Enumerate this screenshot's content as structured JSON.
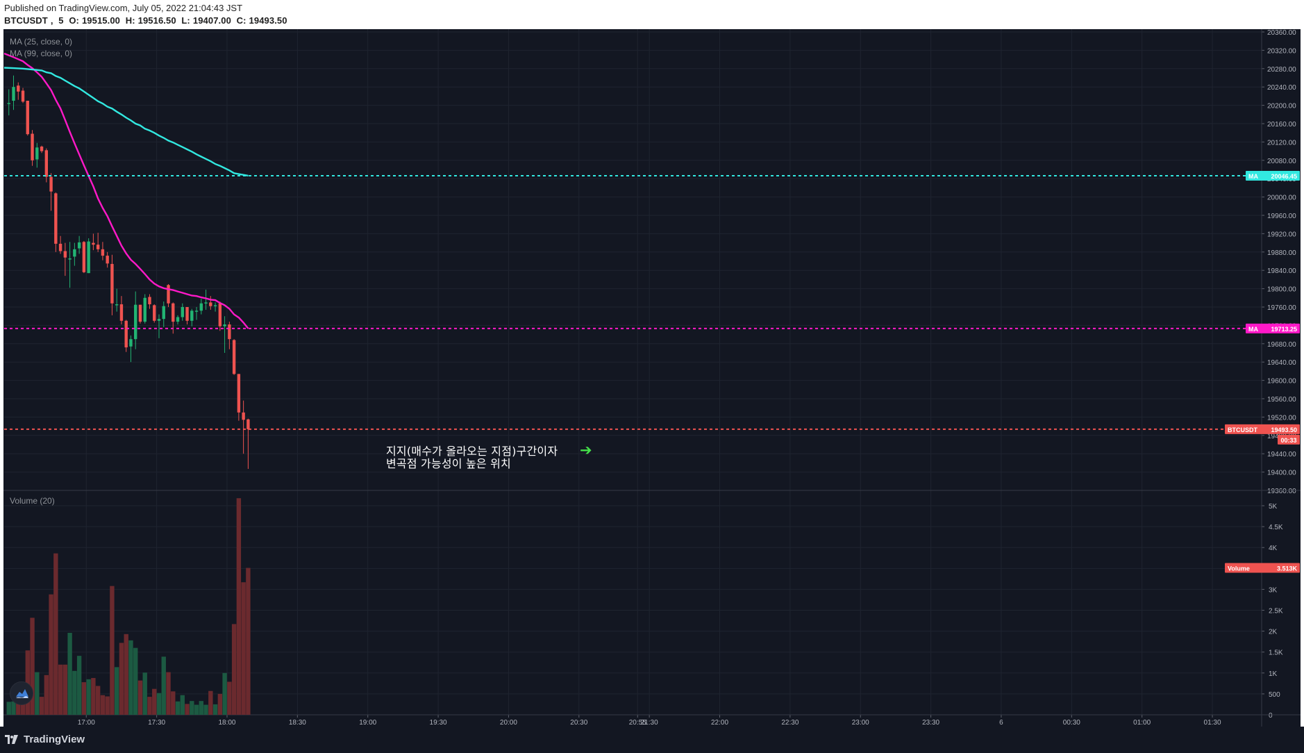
{
  "header": {
    "published_line": "Published on TradingView.com, July 05, 2022 21:04:43 JST",
    "symbol": "BTCUSDT",
    "interval": "5",
    "open_label": "O:",
    "open": "19515.00",
    "high_label": "H:",
    "high": "19516.50",
    "low_label": "L:",
    "low": "19407.00",
    "close_label": "C:",
    "close": "19493.50"
  },
  "legend": {
    "ma25": "MA (25, close, 0)",
    "ma99": "MA (99, close, 0)",
    "volume": "Volume (20)"
  },
  "annotation": {
    "line1": "지지(매수가 올라오는 지점)구간이자",
    "line2": "변곡점 가능성이 높은 위치",
    "arrow": "➔"
  },
  "footer": {
    "brand": "TradingView"
  },
  "colors": {
    "background": "#131722",
    "grid": "#1f2430",
    "axis_text": "#b2b5be",
    "up": "#26a69a",
    "up_candle": "#22b573",
    "down": "#ef5350",
    "volume_up": "#1c5a42",
    "volume_down": "#6b2a2e",
    "ma25": "#ff19c8",
    "ma99": "#32e8e0",
    "price_line": "#ef5350",
    "annotation_arrow": "#45e24a"
  },
  "chart_data": {
    "type": "candlestick",
    "symbol": "BTCUSDT",
    "interval": "5",
    "price_axis": {
      "ylim": [
        19360,
        20360
      ],
      "ticks": [
        "20360.00",
        "20320.00",
        "20280.00",
        "20240.00",
        "20200.00",
        "20160.00",
        "20120.00",
        "20080.00",
        "20040.00",
        "20000.00",
        "19960.00",
        "19920.00",
        "19880.00",
        "19840.00",
        "19800.00",
        "19760.00",
        "19720.00",
        "19680.00",
        "19640.00",
        "19600.00",
        "19560.00",
        "19520.00",
        "19480.00",
        "19440.00",
        "19400.00",
        "19360.00"
      ]
    },
    "volume_axis": {
      "ylim": [
        0,
        5200
      ],
      "ticks": [
        "5K",
        "4.5K",
        "4K",
        "3.5K",
        "3K",
        "2.5K",
        "2K",
        "1.5K",
        "1K",
        "500",
        "0"
      ]
    },
    "time_axis": {
      "ticks": [
        {
          "t": 196,
          "label": "17:00"
        },
        {
          "t": 226,
          "label": "17:30"
        },
        {
          "t": 256,
          "label": "18:00"
        },
        {
          "t": 286,
          "label": "18:30"
        },
        {
          "t": 316,
          "label": "19:00"
        },
        {
          "t": 346,
          "label": "19:30"
        },
        {
          "t": 376,
          "label": "20:00"
        },
        {
          "t": 406,
          "label": "20:30"
        },
        {
          "t": 431,
          "label": "20:55"
        },
        {
          "t": 436,
          "label": "21:30"
        },
        {
          "t": 466,
          "label": "22:00"
        },
        {
          "t": 496,
          "label": "22:30"
        },
        {
          "t": 526,
          "label": "23:00"
        },
        {
          "t": 556,
          "label": "23:30"
        },
        {
          "t": 586,
          "label": "6"
        },
        {
          "t": 616,
          "label": "00:30"
        },
        {
          "t": 646,
          "label": "01:00"
        },
        {
          "t": 676,
          "label": "01:30"
        }
      ],
      "range": [
        161,
        697
      ]
    },
    "candles": [
      {
        "t": 163,
        "o": 20205,
        "h": 20235,
        "l": 20178,
        "c": 20205,
        "v": 310
      },
      {
        "t": 165,
        "o": 20210,
        "h": 20265,
        "l": 20190,
        "c": 20240,
        "v": 320
      },
      {
        "t": 167,
        "o": 20243,
        "h": 20250,
        "l": 20212,
        "c": 20230,
        "v": 360
      },
      {
        "t": 169,
        "o": 20232,
        "h": 20238,
        "l": 20205,
        "c": 20208,
        "v": 420
      },
      {
        "t": 171,
        "o": 20210,
        "h": 20210,
        "l": 20134,
        "c": 20137,
        "v": 1540
      },
      {
        "t": 173,
        "o": 20138,
        "h": 20146,
        "l": 20068,
        "c": 20080,
        "v": 2320
      },
      {
        "t": 175,
        "o": 20082,
        "h": 20118,
        "l": 20064,
        "c": 20108,
        "v": 1020
      },
      {
        "t": 177,
        "o": 20110,
        "h": 20112,
        "l": 20096,
        "c": 20100,
        "v": 430
      },
      {
        "t": 179,
        "o": 20102,
        "h": 20106,
        "l": 20032,
        "c": 20044,
        "v": 950
      },
      {
        "t": 181,
        "o": 20044,
        "h": 20052,
        "l": 19970,
        "c": 20012,
        "v": 2880
      },
      {
        "t": 183,
        "o": 20008,
        "h": 20010,
        "l": 19880,
        "c": 19898,
        "v": 3860
      },
      {
        "t": 185,
        "o": 19898,
        "h": 19915,
        "l": 19876,
        "c": 19882,
        "v": 1200
      },
      {
        "t": 187,
        "o": 19882,
        "h": 19900,
        "l": 19828,
        "c": 19868,
        "v": 1200
      },
      {
        "t": 189,
        "o": 19866,
        "h": 19902,
        "l": 19802,
        "c": 19866,
        "v": 1960
      },
      {
        "t": 191,
        "o": 19870,
        "h": 19900,
        "l": 19850,
        "c": 19886,
        "v": 1050
      },
      {
        "t": 193,
        "o": 19888,
        "h": 19915,
        "l": 19876,
        "c": 19901,
        "v": 1410
      },
      {
        "t": 195,
        "o": 19902,
        "h": 19904,
        "l": 19834,
        "c": 19836,
        "v": 780
      },
      {
        "t": 197,
        "o": 19834,
        "h": 19910,
        "l": 19834,
        "c": 19903,
        "v": 850
      },
      {
        "t": 199,
        "o": 19900,
        "h": 19920,
        "l": 19884,
        "c": 19896,
        "v": 880
      },
      {
        "t": 201,
        "o": 19896,
        "h": 19922,
        "l": 19880,
        "c": 19886,
        "v": 690
      },
      {
        "t": 203,
        "o": 19886,
        "h": 19902,
        "l": 19862,
        "c": 19872,
        "v": 470
      },
      {
        "t": 205,
        "o": 19872,
        "h": 19880,
        "l": 19846,
        "c": 19855,
        "v": 440
      },
      {
        "t": 207,
        "o": 19854,
        "h": 19874,
        "l": 19742,
        "c": 19768,
        "v": 3080
      },
      {
        "t": 209,
        "o": 19766,
        "h": 19800,
        "l": 19750,
        "c": 19766,
        "v": 1140
      },
      {
        "t": 211,
        "o": 19766,
        "h": 19784,
        "l": 19722,
        "c": 19730,
        "v": 1720
      },
      {
        "t": 213,
        "o": 19730,
        "h": 19732,
        "l": 19662,
        "c": 19672,
        "v": 1930
      },
      {
        "t": 215,
        "o": 19674,
        "h": 19698,
        "l": 19640,
        "c": 19690,
        "v": 1780
      },
      {
        "t": 217,
        "o": 19690,
        "h": 19794,
        "l": 19668,
        "c": 19765,
        "v": 1600
      },
      {
        "t": 219,
        "o": 19765,
        "h": 19765,
        "l": 19724,
        "c": 19728,
        "v": 820
      },
      {
        "t": 221,
        "o": 19728,
        "h": 19788,
        "l": 19724,
        "c": 19780,
        "v": 1010
      },
      {
        "t": 223,
        "o": 19782,
        "h": 19788,
        "l": 19756,
        "c": 19766,
        "v": 430
      },
      {
        "t": 225,
        "o": 19764,
        "h": 19766,
        "l": 19726,
        "c": 19730,
        "v": 620
      },
      {
        "t": 227,
        "o": 19730,
        "h": 19744,
        "l": 19692,
        "c": 19734,
        "v": 520
      },
      {
        "t": 229,
        "o": 19734,
        "h": 19772,
        "l": 19716,
        "c": 19762,
        "v": 1390
      },
      {
        "t": 231,
        "o": 19808,
        "h": 19810,
        "l": 19760,
        "c": 19768,
        "v": 1020
      },
      {
        "t": 233,
        "o": 19768,
        "h": 19770,
        "l": 19702,
        "c": 19728,
        "v": 560
      },
      {
        "t": 235,
        "o": 19728,
        "h": 19742,
        "l": 19722,
        "c": 19738,
        "v": 320
      },
      {
        "t": 237,
        "o": 19738,
        "h": 19768,
        "l": 19730,
        "c": 19760,
        "v": 470
      },
      {
        "t": 239,
        "o": 19760,
        "h": 19760,
        "l": 19722,
        "c": 19730,
        "v": 260
      },
      {
        "t": 241,
        "o": 19730,
        "h": 19756,
        "l": 19718,
        "c": 19752,
        "v": 330
      },
      {
        "t": 243,
        "o": 19752,
        "h": 19760,
        "l": 19732,
        "c": 19752,
        "v": 240
      },
      {
        "t": 245,
        "o": 19752,
        "h": 19778,
        "l": 19744,
        "c": 19768,
        "v": 330
      },
      {
        "t": 247,
        "o": 19768,
        "h": 19798,
        "l": 19754,
        "c": 19770,
        "v": 240
      },
      {
        "t": 249,
        "o": 19770,
        "h": 19784,
        "l": 19754,
        "c": 19762,
        "v": 570
      },
      {
        "t": 251,
        "o": 19762,
        "h": 19770,
        "l": 19750,
        "c": 19764,
        "v": 250
      },
      {
        "t": 253,
        "o": 19768,
        "h": 19772,
        "l": 19708,
        "c": 19718,
        "v": 500
      },
      {
        "t": 255,
        "o": 19718,
        "h": 19740,
        "l": 19660,
        "c": 19722,
        "v": 1000
      },
      {
        "t": 257,
        "o": 19722,
        "h": 19728,
        "l": 19668,
        "c": 19690,
        "v": 790
      },
      {
        "t": 259,
        "o": 19688,
        "h": 19690,
        "l": 19612,
        "c": 19614,
        "v": 2170
      },
      {
        "t": 261,
        "o": 19614,
        "h": 19614,
        "l": 19512,
        "c": 19530,
        "v": 5180
      },
      {
        "t": 263,
        "o": 19530,
        "h": 19556,
        "l": 19440,
        "c": 19514,
        "v": 3170
      },
      {
        "t": 265,
        "o": 19515,
        "h": 19516.5,
        "l": 19407,
        "c": 19493.5,
        "v": 3513
      }
    ],
    "series": [
      {
        "name": "MA (25, close, 0)",
        "points": [
          [
            161,
            20313
          ],
          [
            165,
            20305
          ],
          [
            169,
            20296
          ],
          [
            171,
            20288
          ],
          [
            173,
            20281
          ],
          [
            175,
            20272
          ],
          [
            177,
            20262
          ],
          [
            179,
            20248
          ],
          [
            181,
            20233
          ],
          [
            183,
            20212
          ],
          [
            185,
            20193
          ],
          [
            187,
            20168
          ],
          [
            189,
            20142
          ],
          [
            191,
            20117
          ],
          [
            193,
            20093
          ],
          [
            195,
            20069
          ],
          [
            197,
            20046
          ],
          [
            199,
            20023
          ],
          [
            201,
            19997
          ],
          [
            203,
            19976
          ],
          [
            205,
            19958
          ],
          [
            207,
            19936
          ],
          [
            209,
            19915
          ],
          [
            211,
            19894
          ],
          [
            213,
            19877
          ],
          [
            215,
            19863
          ],
          [
            217,
            19854
          ],
          [
            219,
            19843
          ],
          [
            221,
            19832
          ],
          [
            223,
            19820
          ],
          [
            225,
            19811
          ],
          [
            227,
            19805
          ],
          [
            229,
            19801
          ],
          [
            231,
            19799
          ],
          [
            233,
            19797
          ],
          [
            235,
            19794
          ],
          [
            237,
            19791
          ],
          [
            239,
            19788
          ],
          [
            241,
            19785
          ],
          [
            243,
            19784
          ],
          [
            245,
            19781
          ],
          [
            247,
            19779
          ],
          [
            249,
            19776
          ],
          [
            251,
            19775
          ],
          [
            253,
            19769
          ],
          [
            255,
            19764
          ],
          [
            257,
            19756
          ],
          [
            259,
            19744
          ],
          [
            261,
            19737
          ],
          [
            263,
            19726
          ],
          [
            265,
            19713.25
          ]
        ]
      },
      {
        "name": "MA (99, close, 0)",
        "points": [
          [
            161,
            20282
          ],
          [
            165,
            20281
          ],
          [
            169,
            20280
          ],
          [
            173,
            20278
          ],
          [
            177,
            20276
          ],
          [
            179,
            20272
          ],
          [
            181,
            20270
          ],
          [
            183,
            20264
          ],
          [
            185,
            20260
          ],
          [
            187,
            20254
          ],
          [
            189,
            20248
          ],
          [
            191,
            20242
          ],
          [
            193,
            20237
          ],
          [
            195,
            20230
          ],
          [
            197,
            20223
          ],
          [
            199,
            20216
          ],
          [
            201,
            20209
          ],
          [
            203,
            20204
          ],
          [
            205,
            20197
          ],
          [
            207,
            20193
          ],
          [
            209,
            20186
          ],
          [
            211,
            20180
          ],
          [
            213,
            20173
          ],
          [
            215,
            20167
          ],
          [
            217,
            20160
          ],
          [
            219,
            20156
          ],
          [
            221,
            20149
          ],
          [
            223,
            20145
          ],
          [
            225,
            20140
          ],
          [
            227,
            20134
          ],
          [
            229,
            20129
          ],
          [
            231,
            20123
          ],
          [
            233,
            20119
          ],
          [
            235,
            20114
          ],
          [
            237,
            20109
          ],
          [
            239,
            20104
          ],
          [
            241,
            20099
          ],
          [
            243,
            20093
          ],
          [
            245,
            20088
          ],
          [
            247,
            20083
          ],
          [
            249,
            20078
          ],
          [
            251,
            20072
          ],
          [
            253,
            20068
          ],
          [
            255,
            20063
          ],
          [
            257,
            20058
          ],
          [
            259,
            20052
          ],
          [
            261,
            20050
          ],
          [
            265,
            20046.45
          ]
        ]
      }
    ],
    "markers": {
      "ma99_last": {
        "label": "MA",
        "value": "20046.45"
      },
      "ma25_last": {
        "label": "MA",
        "value": "19713.25"
      },
      "last_price": {
        "label": "BTCUSDT",
        "value": "19493.50",
        "countdown": "00:33"
      },
      "volume_last": {
        "label": "Volume",
        "value": "3.513K"
      }
    }
  }
}
